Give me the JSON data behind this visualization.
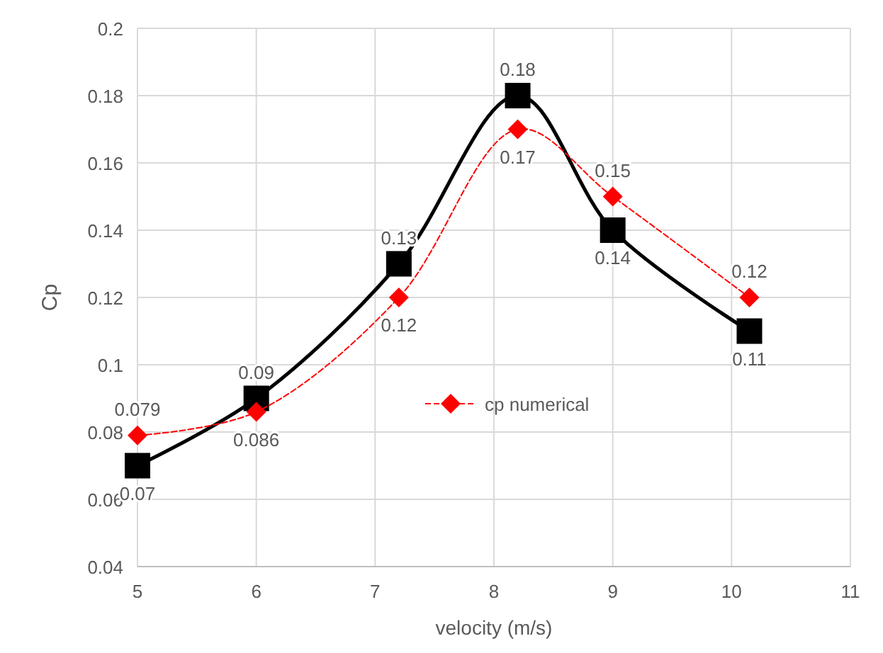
{
  "chart_data": {
    "type": "line",
    "xlabel": "velocity (m/s)",
    "ylabel": "Cp",
    "x": [
      5,
      6,
      7.2,
      8.2,
      9,
      10.15
    ],
    "series": [
      {
        "color": "#000000",
        "values": [
          0.07,
          0.09,
          0.13,
          0.18,
          0.14,
          0.11
        ],
        "marker": "square",
        "line_style": "solid"
      },
      {
        "name": "cp numerical",
        "color": "#ff0000",
        "values": [
          0.079,
          0.086,
          0.12,
          0.17,
          0.15,
          0.12
        ],
        "marker": "diamond",
        "line_style": "dashed"
      }
    ],
    "xlim": [
      5,
      11
    ],
    "xticks": [
      5,
      6,
      7,
      8,
      9,
      10,
      11
    ],
    "ylim": [
      0.04,
      0.2
    ],
    "yticks": [
      0.04,
      0.06,
      0.08,
      0.1,
      0.12,
      0.14,
      0.16,
      0.18,
      0.2
    ],
    "grid": true,
    "legend": "right",
    "data_labels": true
  }
}
